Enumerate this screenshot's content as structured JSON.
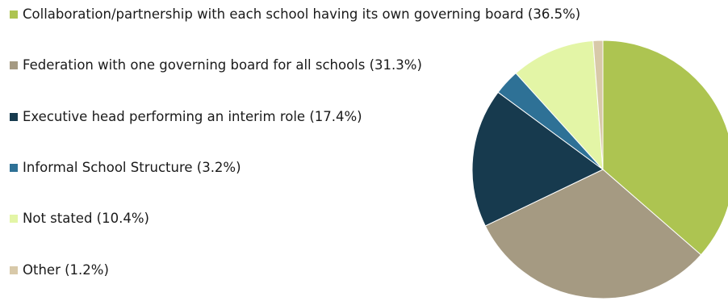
{
  "chart_data": {
    "type": "pie",
    "title": "",
    "legend_position": "left",
    "series": [
      {
        "name": "Collaboration/partnership with each school having its own governing board (36.5%)",
        "value": 36.5,
        "color": "#adc451"
      },
      {
        "name": "Federation with one governing board for all schools (31.3%)",
        "value": 31.3,
        "color": "#a59a82"
      },
      {
        "name": "Executive head performing an interim role (17.4%)",
        "value": 17.4,
        "color": "#173a4e"
      },
      {
        "name": "Informal School Structure (3.2%)",
        "value": 3.2,
        "color": "#2e7196"
      },
      {
        "name": "Not stated (10.4%)",
        "value": 10.4,
        "color": "#e3f5a6"
      },
      {
        "name": "Other (1.2%)",
        "value": 1.2,
        "color": "#d8c9a9"
      }
    ]
  }
}
